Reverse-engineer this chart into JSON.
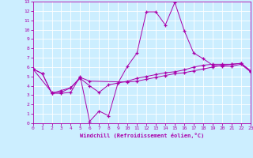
{
  "xlabel": "Windchill (Refroidissement éolien,°C)",
  "xlim": [
    0,
    23
  ],
  "ylim": [
    0,
    13
  ],
  "xticks": [
    0,
    1,
    2,
    3,
    4,
    5,
    6,
    7,
    8,
    9,
    10,
    11,
    12,
    13,
    14,
    15,
    16,
    17,
    18,
    19,
    20,
    21,
    22,
    23
  ],
  "yticks": [
    0,
    1,
    2,
    3,
    4,
    5,
    6,
    7,
    8,
    9,
    10,
    11,
    12,
    13
  ],
  "bg_color": "#cceeff",
  "line_color": "#aa00aa",
  "grid_color": "#ffffff",
  "line1_x": [
    0,
    1,
    2,
    3,
    4,
    5,
    6,
    7,
    8,
    9,
    10,
    11,
    12,
    13,
    14,
    15,
    16,
    17,
    18,
    19,
    20,
    21,
    22,
    23
  ],
  "line1_y": [
    5.8,
    5.3,
    3.2,
    3.2,
    3.3,
    5.0,
    0.2,
    1.3,
    0.8,
    4.3,
    6.1,
    7.5,
    11.9,
    11.9,
    10.5,
    12.9,
    9.9,
    7.5,
    6.9,
    6.2,
    6.1,
    6.1,
    6.3,
    5.5
  ],
  "line2_x": [
    0,
    1,
    2,
    3,
    4,
    5,
    6,
    7,
    8,
    9,
    10,
    11,
    12,
    13,
    14,
    15,
    16,
    17,
    18,
    19,
    20,
    21,
    22,
    23
  ],
  "line2_y": [
    5.8,
    5.3,
    3.2,
    3.5,
    3.8,
    4.8,
    4.0,
    3.3,
    4.1,
    4.3,
    4.5,
    4.8,
    5.0,
    5.2,
    5.4,
    5.5,
    5.7,
    6.0,
    6.2,
    6.3,
    6.3,
    6.3,
    6.4,
    5.6
  ],
  "line3_x": [
    0,
    2,
    3,
    4,
    5,
    6,
    10,
    11,
    12,
    13,
    14,
    15,
    16,
    17,
    18,
    19,
    20,
    21,
    22,
    23
  ],
  "line3_y": [
    5.8,
    3.3,
    3.3,
    3.8,
    4.9,
    4.5,
    4.4,
    4.5,
    4.7,
    4.9,
    5.1,
    5.3,
    5.4,
    5.6,
    5.8,
    6.0,
    6.2,
    6.3,
    6.4,
    5.6
  ]
}
